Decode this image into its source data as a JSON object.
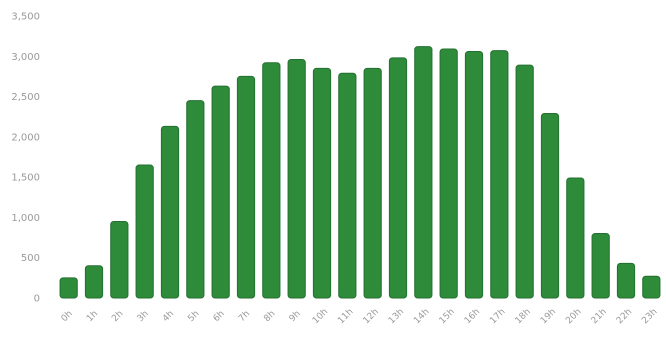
{
  "chart_data": {
    "type": "bar",
    "title": "",
    "xlabel": "",
    "ylabel": "",
    "categories": [
      "0h",
      "1h",
      "2h",
      "3h",
      "4h",
      "5h",
      "6h",
      "7h",
      "8h",
      "9h",
      "10h",
      "11h",
      "12h",
      "13h",
      "14h",
      "15h",
      "16h",
      "17h",
      "18h",
      "19h",
      "20h",
      "21h",
      "22h",
      "23h"
    ],
    "values": [
      250,
      400,
      950,
      1650,
      2130,
      2450,
      2630,
      2750,
      2920,
      2960,
      2850,
      2790,
      2850,
      2980,
      3120,
      3090,
      3060,
      3070,
      2890,
      2290,
      1490,
      800,
      430,
      270
    ],
    "ylim": [
      0,
      3500
    ],
    "yticks": [
      "0",
      "500",
      "1,000",
      "1,500",
      "2,000",
      "2,500",
      "3,000",
      "3,500"
    ],
    "ytick_values": [
      0,
      500,
      1000,
      1500,
      2000,
      2500,
      3000,
      3500
    ],
    "grid": false,
    "legend": "none",
    "colors": {
      "bar": "#2e8b3a",
      "bar_edge": "#247030",
      "tick_text": "#9a9a9a"
    }
  }
}
